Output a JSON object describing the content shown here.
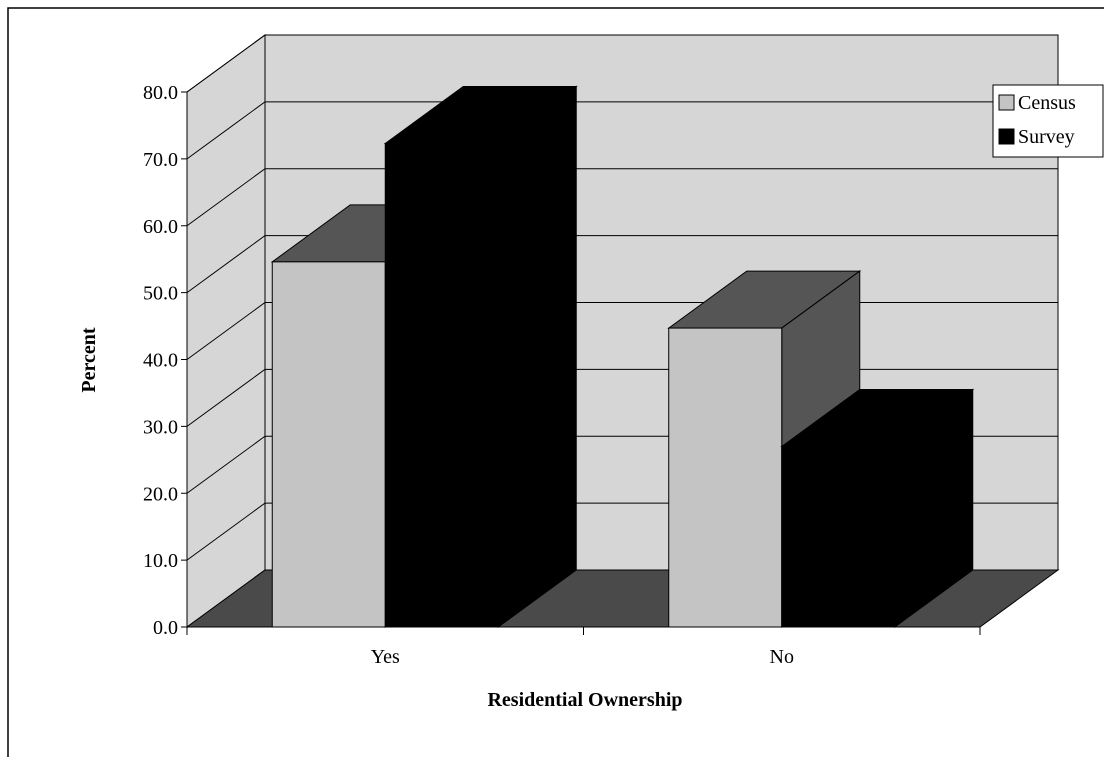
{
  "chart_data": {
    "type": "bar3d",
    "x_label": "Residential Ownership",
    "y_label": "Percent",
    "categories": [
      "Yes",
      "No"
    ],
    "series": [
      {
        "name": "Census",
        "color": "#c4c4c4",
        "values": [
          54.6,
          44.7
        ]
      },
      {
        "name": "Survey",
        "color": "#000000",
        "values": [
          72.3,
          27.0
        ]
      }
    ],
    "ylim": [
      0,
      80
    ],
    "yticks": [
      {
        "value": 0,
        "label": "0.0"
      },
      {
        "value": 10,
        "label": "10.0"
      },
      {
        "value": 20,
        "label": "20.0"
      },
      {
        "value": 30,
        "label": "30.0"
      },
      {
        "value": 40,
        "label": "40.0"
      },
      {
        "value": 50,
        "label": "50.0"
      },
      {
        "value": 60,
        "label": "60.0"
      },
      {
        "value": 70,
        "label": "70.0"
      },
      {
        "value": 80,
        "label": "80.0"
      }
    ],
    "grid": true,
    "legend": "upper right"
  }
}
